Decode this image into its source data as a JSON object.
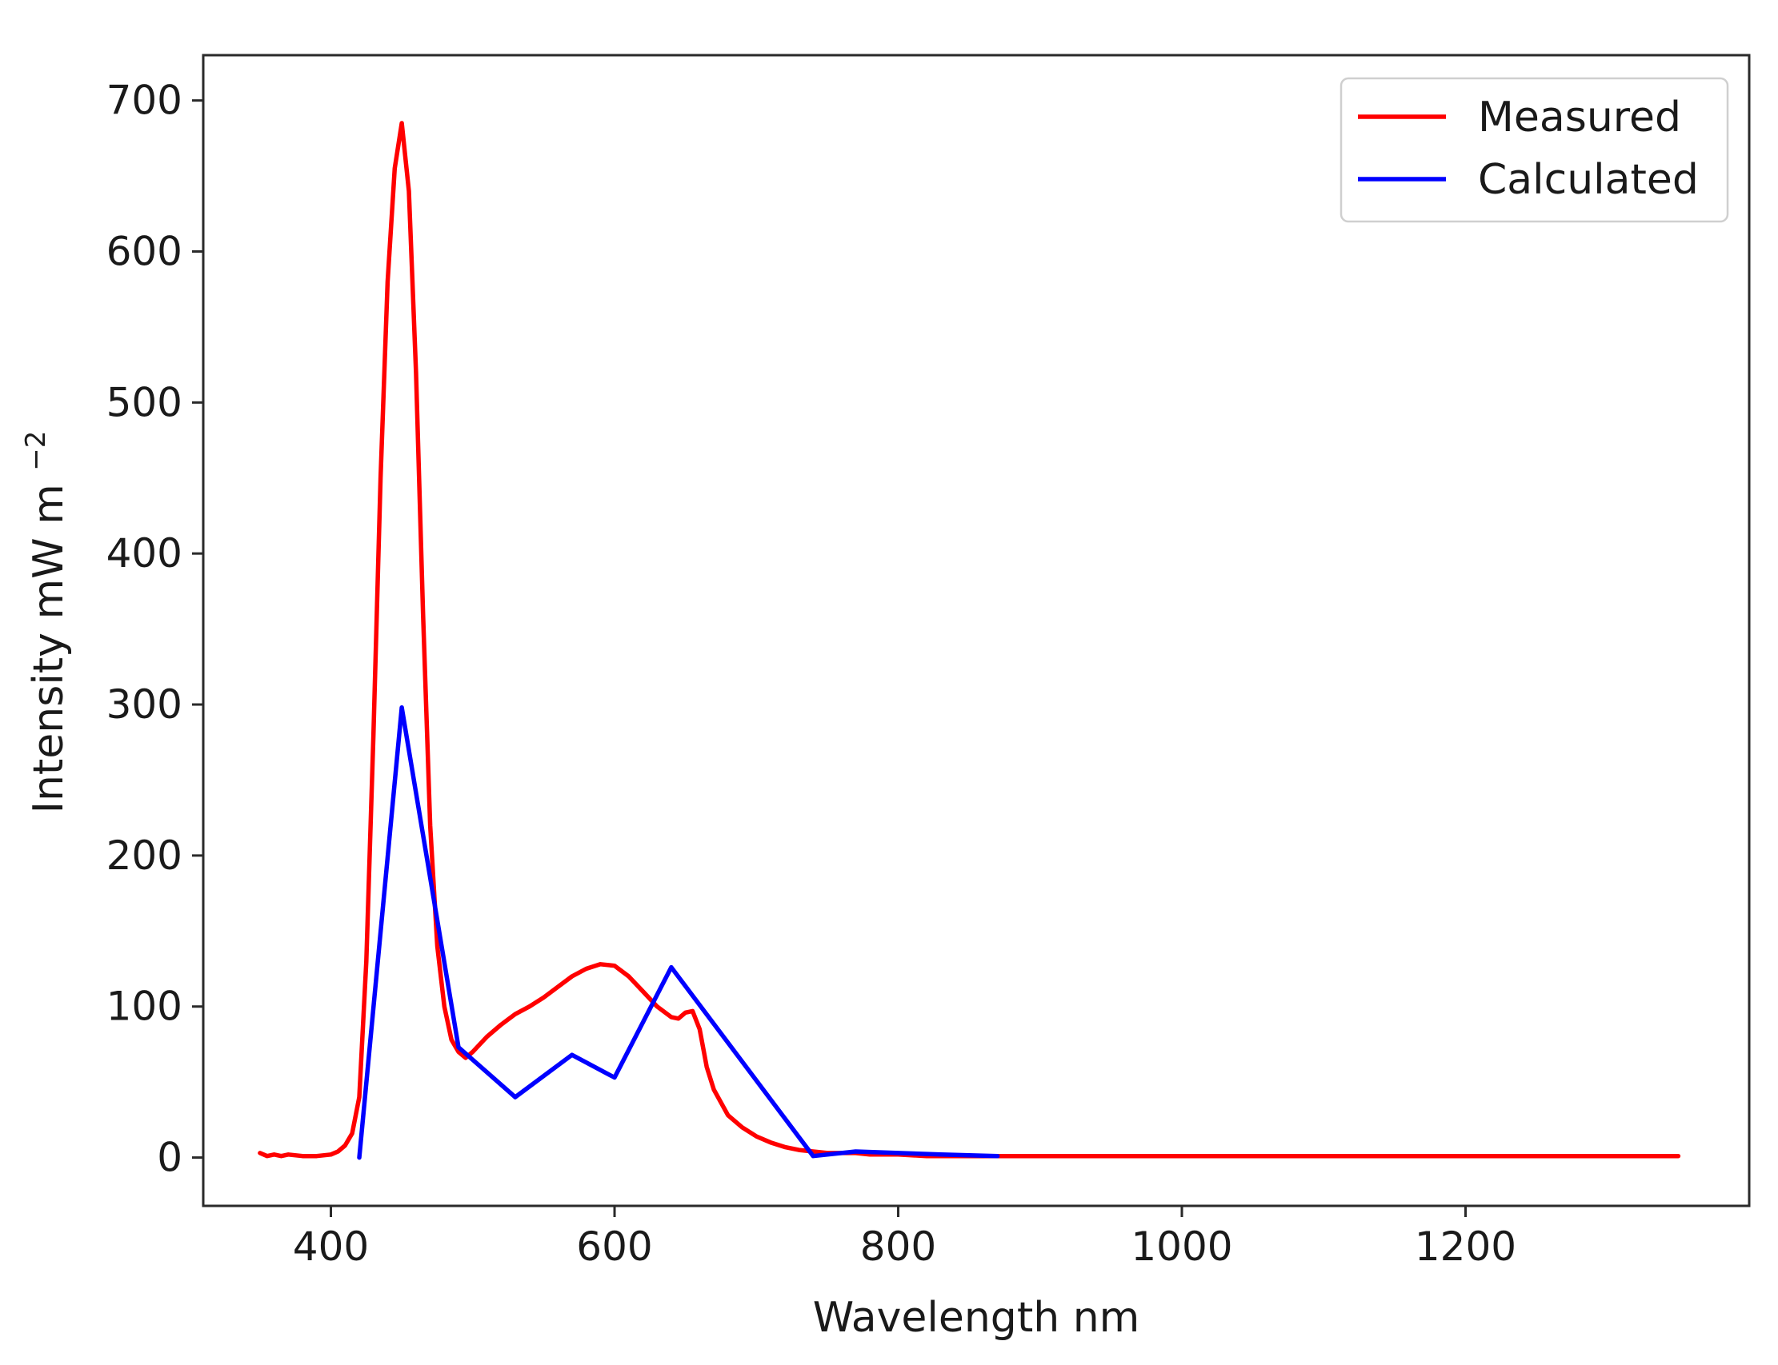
{
  "chart_data": {
    "type": "line",
    "title": "",
    "xlabel": "Wavelength nm",
    "ylabel": "Intensity mW m",
    "ylabel_superscript": "−2",
    "xlim": [
      310,
      1400
    ],
    "ylim": [
      -32,
      730
    ],
    "xticks": [
      400,
      600,
      800,
      1000,
      1200
    ],
    "yticks": [
      0,
      100,
      200,
      300,
      400,
      500,
      600,
      700
    ],
    "grid": false,
    "legend": "top-right",
    "series": [
      {
        "name": "Measured",
        "color": "#ff0000",
        "x": [
          350,
          355,
          360,
          365,
          370,
          380,
          390,
          400,
          405,
          410,
          415,
          420,
          425,
          430,
          435,
          440,
          445,
          450,
          455,
          460,
          465,
          470,
          475,
          480,
          485,
          490,
          495,
          500,
          510,
          520,
          530,
          540,
          550,
          560,
          570,
          580,
          590,
          600,
          610,
          620,
          630,
          640,
          645,
          650,
          655,
          660,
          665,
          670,
          680,
          690,
          700,
          710,
          720,
          730,
          740,
          750,
          760,
          770,
          780,
          790,
          800,
          820,
          850,
          870,
          900,
          1000,
          1100,
          1200,
          1300,
          1350
        ],
        "y": [
          3,
          1,
          2,
          1,
          2,
          1,
          1,
          2,
          4,
          8,
          16,
          40,
          130,
          280,
          450,
          580,
          655,
          685,
          640,
          520,
          360,
          220,
          140,
          100,
          78,
          70,
          66,
          70,
          80,
          88,
          95,
          100,
          106,
          113,
          120,
          125,
          128,
          127,
          120,
          110,
          100,
          93,
          92,
          96,
          97,
          85,
          60,
          45,
          28,
          20,
          14,
          10,
          7,
          5,
          4,
          3,
          3,
          3,
          2,
          2,
          2,
          1,
          1,
          1,
          1,
          1,
          1,
          1,
          1,
          1
        ]
      },
      {
        "name": "Calculated",
        "color": "#0000ff",
        "x": [
          420,
          450,
          490,
          530,
          570,
          600,
          640,
          740,
          770,
          800,
          830,
          870
        ],
        "y": [
          0,
          298,
          73,
          40,
          68,
          53,
          126,
          1,
          4,
          3,
          2,
          1
        ]
      }
    ]
  }
}
